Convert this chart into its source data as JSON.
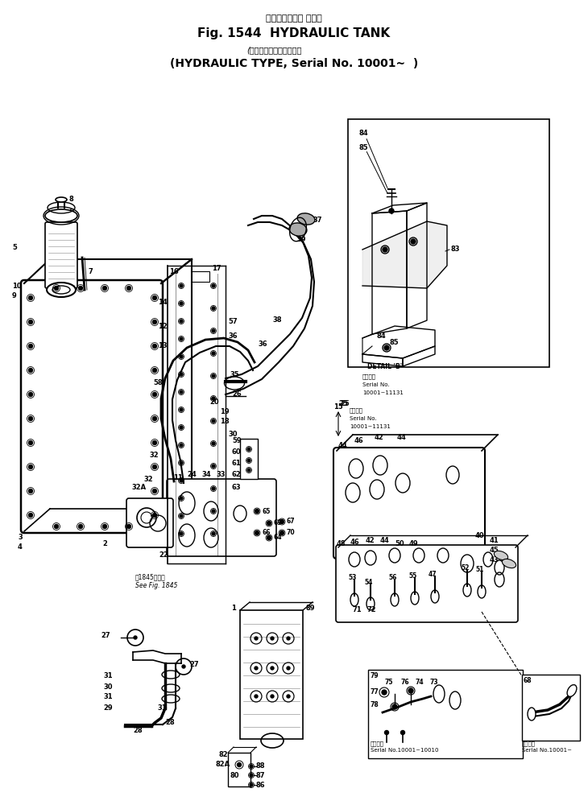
{
  "title_jp": "ハイドロリック タンク",
  "title_en": "Fig. 1544  HYDRAULIC TANK",
  "subtitle_jp": "(油　　圧　式、適用号機",
  "subtitle_en": "(HYDRAULIC TYPE, Serial No. 10001~  )",
  "bg_color": "#ffffff",
  "serial1": "10001~11131",
  "serial2": "Serial No.10001~10010",
  "serial3": "Serial No.10001~",
  "detail_note": "DETAIL 'B'",
  "serial_jp": "適用番号",
  "serial_en": "Serial No.",
  "see_fig": "図1845図参照\nSee Fig. 1845",
  "serial_note_jp": "適用番号",
  "serial_note_range": "10001~11131"
}
